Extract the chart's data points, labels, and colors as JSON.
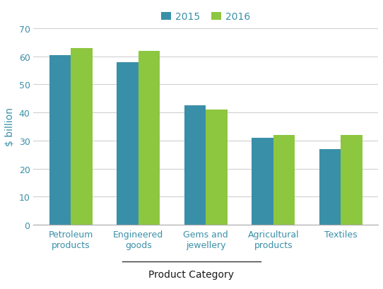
{
  "categories": [
    "Petroleum\nproducts",
    "Engineered\ngoods",
    "Gems and\njewellery",
    "Agricultural\nproducts",
    "Textiles"
  ],
  "values_2015": [
    60.5,
    58.0,
    42.5,
    31.0,
    27.0
  ],
  "values_2016": [
    63.0,
    62.0,
    41.0,
    32.0,
    32.0
  ],
  "color_2015": "#3a8fa8",
  "color_2016": "#8dc63f",
  "ylabel": "$ billion",
  "xlabel": "Product Category",
  "legend_2015": "2015",
  "legend_2016": "2016",
  "ylim": [
    0,
    70
  ],
  "yticks": [
    0,
    10,
    20,
    30,
    40,
    50,
    60,
    70
  ],
  "bar_width": 0.32,
  "axis_label_color": "#3a8fa8",
  "tick_label_color": "#3a8fa8",
  "xlabel_color": "#1a1a1a",
  "grid_color": "#d0d0d0",
  "background_color": "#ffffff",
  "spine_color": "#aaaaaa"
}
